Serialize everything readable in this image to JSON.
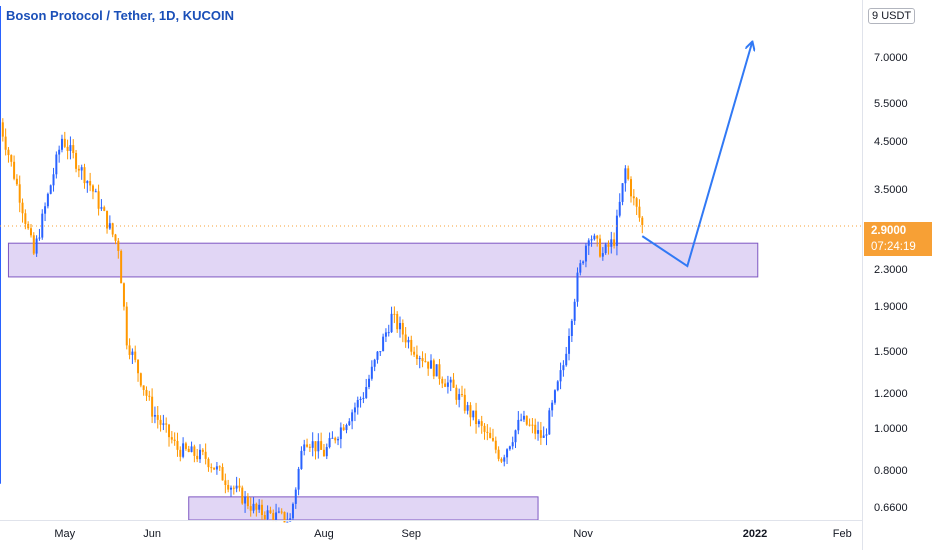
{
  "header": {
    "title": "Boson Protocol / Tether, 1D, KUCOIN"
  },
  "price_axis": {
    "unit": "USDT"
  },
  "last_price": {
    "value": "2.9000",
    "countdown": "07:24:19",
    "color": "#f7a035"
  },
  "colors": {
    "up": "#2962ff",
    "down": "#ff9800",
    "zone_fill": "#e1d6f5",
    "zone_border": "#7e57c2",
    "arrow": "#3179f5",
    "grid": "#e0e3eb"
  },
  "chart_data": {
    "type": "candlestick",
    "title": "Boson Protocol / Tether, 1D, KUCOIN",
    "scale": "log",
    "ylim": [
      0.62,
      9.2
    ],
    "y_ticks": [
      "9",
      "7.0000",
      "5.5000",
      "4.5000",
      "3.5000",
      "2.9000",
      "2.3000",
      "1.9000",
      "1.5000",
      "1.2000",
      "1.0000",
      "0.8000",
      "0.6600"
    ],
    "y_tick_values": [
      9,
      7.0,
      5.5,
      4.5,
      3.5,
      2.9,
      2.3,
      1.9,
      1.5,
      1.2,
      1.0,
      0.8,
      0.66
    ],
    "x_labels": [
      "May",
      "Jun",
      "Aug",
      "Sep",
      "Nov",
      "2022",
      "Feb"
    ],
    "x_label_dates": [
      "2021-05-01",
      "2021-06-01",
      "2021-08-01",
      "2021-09-01",
      "2021-11-01",
      "2022-01-01",
      "2022-02-01"
    ],
    "x_range": [
      "2021-04-08",
      "2022-02-08"
    ],
    "anchors": [
      {
        "date": "2021-04-08",
        "close": 5.0
      },
      {
        "date": "2021-04-15",
        "close": 3.4
      },
      {
        "date": "2021-04-20",
        "close": 2.5
      },
      {
        "date": "2021-04-30",
        "close": 4.6
      },
      {
        "date": "2021-05-10",
        "close": 3.6
      },
      {
        "date": "2021-05-20",
        "close": 2.6
      },
      {
        "date": "2021-05-23",
        "close": 1.6
      },
      {
        "date": "2021-06-01",
        "close": 1.1
      },
      {
        "date": "2021-06-10",
        "close": 0.9
      },
      {
        "date": "2021-06-20",
        "close": 0.86
      },
      {
        "date": "2021-07-01",
        "close": 0.72
      },
      {
        "date": "2021-07-08",
        "close": 0.65
      },
      {
        "date": "2021-07-20",
        "close": 0.62
      },
      {
        "date": "2021-07-25",
        "close": 0.96
      },
      {
        "date": "2021-08-01",
        "close": 0.88
      },
      {
        "date": "2021-08-15",
        "close": 1.2
      },
      {
        "date": "2021-08-25",
        "close": 1.8
      },
      {
        "date": "2021-09-01",
        "close": 1.55
      },
      {
        "date": "2021-09-15",
        "close": 1.25
      },
      {
        "date": "2021-09-28",
        "close": 0.96
      },
      {
        "date": "2021-10-03",
        "close": 0.86
      },
      {
        "date": "2021-10-10",
        "close": 1.05
      },
      {
        "date": "2021-10-18",
        "close": 0.95
      },
      {
        "date": "2021-10-25",
        "close": 1.4
      },
      {
        "date": "2021-10-30",
        "close": 2.2
      },
      {
        "date": "2021-11-03",
        "close": 2.8
      },
      {
        "date": "2021-11-08",
        "close": 2.5
      },
      {
        "date": "2021-11-12",
        "close": 2.7
      },
      {
        "date": "2021-11-16",
        "close": 3.9
      },
      {
        "date": "2021-11-19",
        "close": 3.3
      },
      {
        "date": "2021-11-22",
        "close": 2.9
      }
    ],
    "zones": [
      {
        "from": "2021-04-11",
        "to": "2022-01-02",
        "high": 2.65,
        "low": 2.22
      },
      {
        "from": "2021-06-14",
        "to": "2021-10-16",
        "high": 0.7,
        "low": 0.6
      }
    ],
    "projection": [
      {
        "date": "2021-11-22",
        "price": 2.75
      },
      {
        "date": "2021-12-08",
        "price": 2.35
      },
      {
        "date": "2021-12-31",
        "price": 7.6
      }
    ],
    "last_price_value": 2.9
  }
}
